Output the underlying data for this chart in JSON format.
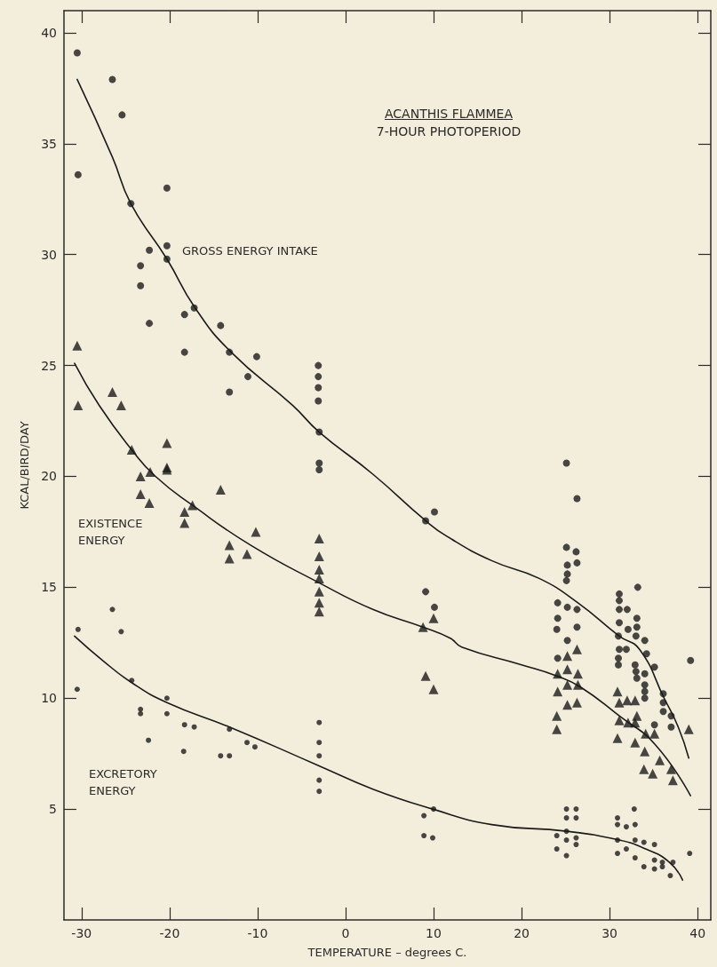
{
  "chart_data": {
    "type": "scatter",
    "title": "ACANTHIS FLAMMEA",
    "subtitle": "7-HOUR PHOTOPERIOD",
    "xlabel": "TEMPERATURE – degrees C.",
    "ylabel": "KCAL/BIRD/DAY",
    "xlim": [
      -32,
      41.5
    ],
    "ylim": [
      0,
      41
    ],
    "xticks": [
      -30,
      -20,
      -10,
      0,
      10,
      20,
      30,
      40
    ],
    "yticks": [
      5,
      10,
      15,
      20,
      25,
      30,
      35,
      40
    ],
    "grid": false,
    "series": [
      {
        "name": "GROSS ENERGY INTAKE",
        "color": "#1a1a1a",
        "marker": "circle",
        "x": [
          -30.5,
          -26.5,
          -25.4,
          -30.4,
          -20.3,
          -24.4,
          -20.3,
          -22.3,
          -20.3,
          -23.3,
          -23.3,
          -17.2,
          -18.3,
          -22.3,
          -14.2,
          -18.3,
          -13.2,
          -10.1,
          -11.1,
          -13.2,
          -3.1,
          -3.1,
          -3.1,
          -3.1,
          -3.0,
          -3.0,
          -3.0,
          10.1,
          9.1,
          9.1,
          10.1,
          25.1,
          26.3,
          25.1,
          26.2,
          26.3,
          25.2,
          25.2,
          25.1,
          24.1,
          25.2,
          26.3,
          24.1,
          24.0,
          26.3,
          25.2,
          24.1,
          31.1,
          33.2,
          31.1,
          31.1,
          32.0,
          33.1,
          31.1,
          32.1,
          33.1,
          33.0,
          34.0,
          31.0,
          31.1,
          31.9,
          31.0,
          31.0,
          32.9,
          34.2,
          35.1,
          33.0,
          34.0,
          33.1,
          34.0,
          34.0,
          34.0,
          36.1,
          36.1,
          36.1,
          37.0,
          37.0,
          35.1,
          39.2
        ],
        "values": [
          39.1,
          37.9,
          36.3,
          33.6,
          33.0,
          32.3,
          30.4,
          30.2,
          29.8,
          29.5,
          28.6,
          27.6,
          27.3,
          26.9,
          26.8,
          25.6,
          25.6,
          25.4,
          24.5,
          23.8,
          25.0,
          24.5,
          24.0,
          23.4,
          22.0,
          20.6,
          20.3,
          18.4,
          18.0,
          14.8,
          14.1,
          20.6,
          19.0,
          16.8,
          16.6,
          16.1,
          16.0,
          15.6,
          15.3,
          14.3,
          14.1,
          14.0,
          13.6,
          13.1,
          13.2,
          12.6,
          11.8,
          14.7,
          15.0,
          14.4,
          14.0,
          14.0,
          13.6,
          13.4,
          13.1,
          13.2,
          12.8,
          12.6,
          12.8,
          12.2,
          12.2,
          11.8,
          11.5,
          11.5,
          12.0,
          11.4,
          11.2,
          11.1,
          10.9,
          10.6,
          10.3,
          10.0,
          10.2,
          9.8,
          9.4,
          9.2,
          8.7,
          8.8,
          11.7
        ]
      },
      {
        "name": "EXISTENCE ENERGY",
        "color": "#1a1a1a",
        "marker": "triangle",
        "x": [
          -30.5,
          -30.4,
          -26.5,
          -25.5,
          -24.3,
          -20.3,
          -23.3,
          -22.2,
          -20.3,
          -20.3,
          -23.3,
          -22.3,
          -17.4,
          -18.3,
          -18.3,
          -14.2,
          -10.2,
          -13.2,
          -11.2,
          -13.2,
          -3.0,
          -3.0,
          -3.0,
          -3.0,
          -3.0,
          -3.0,
          -3.0,
          10.0,
          8.8,
          9.1,
          10.0,
          26.3,
          25.2,
          25.2,
          24.1,
          26.4,
          25.2,
          26.4,
          24.1,
          26.3,
          25.2,
          24.0,
          24.0,
          30.9,
          31.1,
          32.0,
          32.9,
          33.1,
          31.1,
          32.1,
          32.9,
          30.9,
          32.9,
          34.1,
          35.1,
          34.0,
          35.7,
          33.9,
          34.9,
          37.0,
          37.2,
          39.0
        ],
        "values": [
          25.9,
          23.2,
          23.8,
          23.2,
          21.2,
          21.5,
          20.0,
          20.2,
          20.4,
          20.3,
          19.2,
          18.8,
          18.7,
          18.4,
          17.9,
          19.4,
          17.5,
          16.9,
          16.5,
          16.3,
          17.2,
          16.4,
          15.8,
          15.4,
          14.8,
          14.3,
          13.9,
          13.6,
          13.2,
          11.0,
          10.4,
          12.2,
          11.9,
          11.3,
          11.1,
          11.1,
          10.6,
          10.6,
          10.3,
          9.8,
          9.7,
          9.2,
          8.6,
          10.3,
          9.8,
          9.9,
          9.9,
          9.2,
          9.0,
          8.9,
          8.9,
          8.2,
          8.0,
          8.4,
          8.4,
          7.6,
          7.2,
          6.8,
          6.6,
          6.8,
          6.3,
          8.6
        ]
      },
      {
        "name": "EXCRETORY ENERGY",
        "color": "#1a1a1a",
        "marker": "circle",
        "x": [
          -30.4,
          -30.5,
          -26.5,
          -25.5,
          -24.3,
          -23.3,
          -23.3,
          -22.4,
          -20.3,
          -20.3,
          -18.3,
          -17.2,
          -18.4,
          -13.2,
          -14.2,
          -13.2,
          -11.2,
          -10.3,
          -3.0,
          -3.0,
          -3.0,
          -3.0,
          -3.0,
          8.9,
          10.0,
          8.9,
          9.9,
          25.1,
          26.2,
          25.1,
          26.2,
          24.0,
          25.1,
          25.1,
          26.2,
          26.2,
          24.0,
          25.1,
          32.8,
          30.9,
          30.9,
          31.9,
          32.9,
          30.9,
          30.9,
          31.9,
          32.9,
          32.9,
          33.9,
          33.9,
          35.1,
          35.1,
          35.1,
          36.0,
          36.0,
          36.9,
          37.2,
          39.1
        ],
        "values": [
          13.1,
          10.4,
          14.0,
          13.0,
          10.8,
          9.5,
          9.3,
          8.1,
          10.0,
          9.3,
          8.8,
          8.7,
          7.6,
          8.6,
          7.4,
          7.4,
          8.0,
          7.8,
          8.9,
          8.0,
          7.4,
          6.3,
          5.8,
          4.7,
          5.0,
          3.8,
          3.7,
          5.0,
          5.0,
          4.6,
          4.6,
          3.8,
          4.0,
          3.6,
          3.7,
          3.4,
          3.2,
          2.9,
          5.0,
          4.6,
          4.3,
          4.2,
          4.3,
          3.6,
          3.0,
          3.2,
          3.6,
          2.8,
          3.5,
          2.4,
          3.4,
          2.7,
          2.3,
          2.6,
          2.4,
          2.0,
          2.6,
          3.0
        ]
      },
      {
        "type": "line",
        "color": "#1a1a1a",
        "marker": "none",
        "line_style": "solid",
        "x": [
          -30.5,
          -26.5,
          -24.4,
          -20.3,
          -17.1,
          -13.0,
          -6.0,
          -3.0,
          3.1,
          9.1,
          11.5,
          16.6,
          22.0,
          26.4,
          31.1,
          33.4,
          36.2,
          37.8,
          39.0
        ],
        "values": [
          37.9,
          34.4,
          32.3,
          29.8,
          27.6,
          25.6,
          23.2,
          22.0,
          20.1,
          18.0,
          17.3,
          16.2,
          15.4,
          14.3,
          12.8,
          12.2,
          10.0,
          8.7,
          7.3
        ]
      },
      {
        "type": "line",
        "color": "#1a1a1a",
        "marker": "none",
        "line_style": "solid",
        "x": [
          -30.8,
          -28.0,
          -24.3,
          -21.6,
          -17.4,
          -10.8,
          -3.0,
          3.1,
          8.8,
          11.9,
          13.2,
          20.0,
          24.0,
          26.7,
          31.1,
          35.2,
          39.2
        ],
        "values": [
          25.1,
          23.2,
          21.2,
          20.0,
          18.7,
          16.9,
          15.2,
          14.0,
          13.2,
          12.7,
          12.3,
          11.5,
          11.0,
          10.5,
          9.2,
          7.9,
          5.6
        ]
      },
      {
        "type": "line",
        "color": "#1a1a1a",
        "marker": "none",
        "line_style": "solid",
        "x": [
          -30.8,
          -27.6,
          -24.3,
          -20.3,
          -13.2,
          -3.3,
          3.1,
          9.9,
          16.6,
          25.1,
          31.1,
          34.1,
          36.8,
          38.3
        ],
        "values": [
          12.8,
          11.7,
          10.7,
          9.8,
          8.7,
          7.0,
          5.9,
          5.0,
          4.3,
          4.0,
          3.6,
          3.2,
          2.6,
          1.8
        ]
      }
    ]
  }
}
